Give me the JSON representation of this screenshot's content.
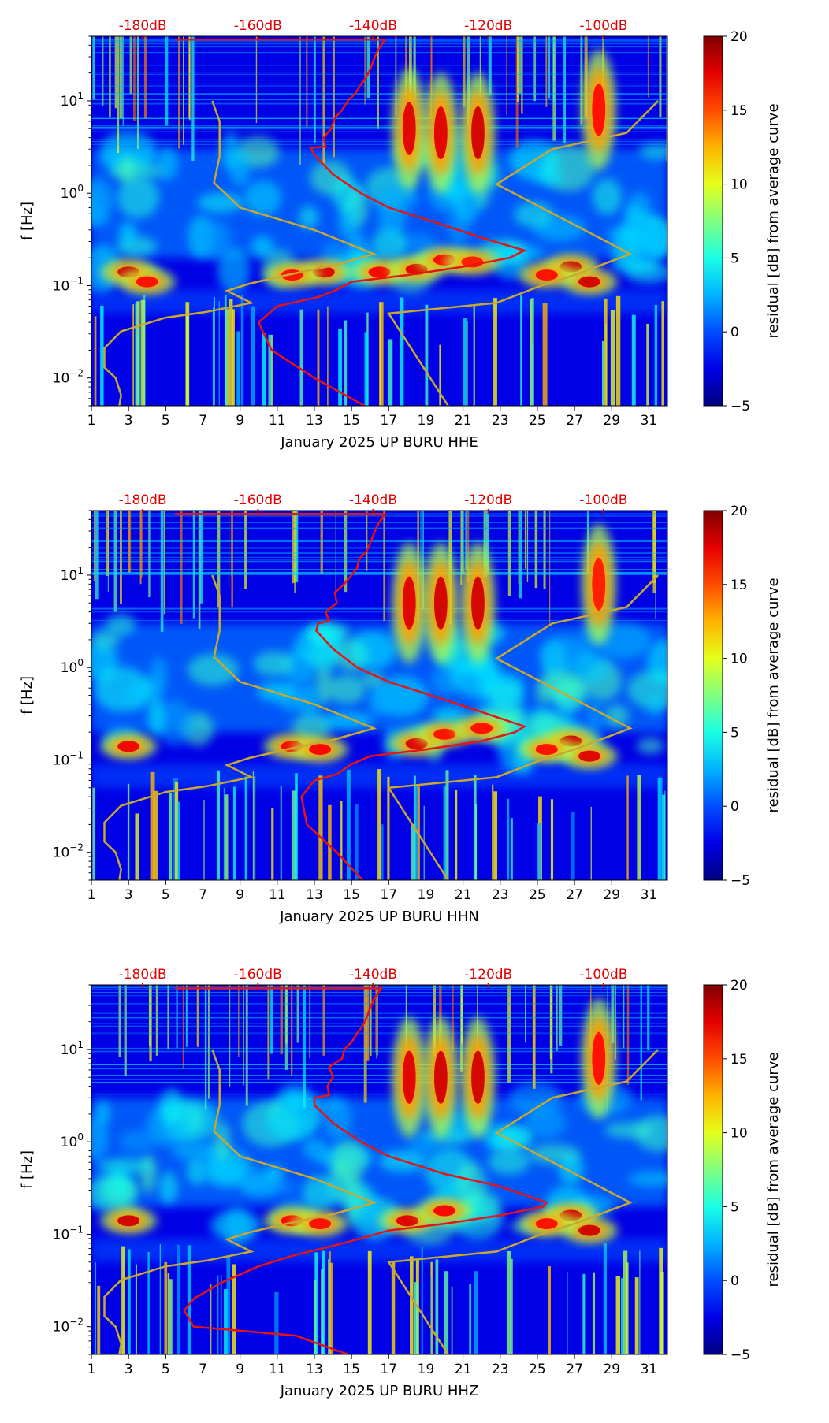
{
  "colors": {
    "db_label": "#e00000",
    "noise_model": "#c8a832",
    "psd_curve": "#e61414",
    "axis": "#000000"
  },
  "chart_data": [
    {
      "type": "heatmap",
      "component": "HHE",
      "xlabel": "January 2025 UP BURU  HHE",
      "ylabel": "f [Hz]",
      "x_ticks": [
        "1",
        "3",
        "5",
        "7",
        "9",
        "11",
        "13",
        "15",
        "17",
        "19",
        "21",
        "23",
        "25",
        "27",
        "29",
        "31"
      ],
      "x_range": [
        1,
        32
      ],
      "y_range": [
        0.005,
        50
      ],
      "y_scale": "log",
      "y_ticks": [
        {
          "value": 0.01,
          "base": "10",
          "exp": "−2"
        },
        {
          "value": 0.1,
          "base": "10",
          "exp": "−1"
        },
        {
          "value": 1,
          "base": "10",
          "exp": "0"
        },
        {
          "value": 10,
          "base": "10",
          "exp": "1"
        }
      ],
      "top_db_labels": [
        "-180dB",
        "-160dB",
        "-140dB",
        "-120dB",
        "-100dB"
      ],
      "colorbar": {
        "label": "residual [dB] from average curve",
        "range": [
          -5,
          20
        ],
        "ticks": [
          "20",
          "15",
          "10",
          "5",
          "0",
          "−5"
        ]
      },
      "noise_model_curve": [
        [
          2.5,
          0.005
        ],
        [
          2.6,
          0.0065
        ],
        [
          2.3,
          0.01
        ],
        [
          1.7,
          0.013
        ],
        [
          1.7,
          0.021
        ],
        [
          2.6,
          0.032
        ],
        [
          5.0,
          0.045
        ],
        [
          7.2,
          0.052
        ],
        [
          9.6,
          0.065
        ],
        [
          8.3,
          0.088
        ],
        [
          9.5,
          0.105
        ],
        [
          11.5,
          0.13
        ],
        [
          14.0,
          0.165
        ],
        [
          16.2,
          0.22
        ],
        [
          13.0,
          0.4
        ],
        [
          9.0,
          0.7
        ],
        [
          7.6,
          1.3
        ],
        [
          7.9,
          2.5
        ],
        [
          7.9,
          6.0
        ],
        [
          7.5,
          10.0
        ]
      ],
      "noise_model_curve_2": [
        [
          20.2,
          0.005
        ],
        [
          17.0,
          0.05
        ],
        [
          22.8,
          0.065
        ],
        [
          25.2,
          0.1
        ],
        [
          27.0,
          0.13
        ],
        [
          30.0,
          0.22
        ],
        [
          22.8,
          1.25
        ],
        [
          25.8,
          3.0
        ],
        [
          29.8,
          4.5
        ],
        [
          31.5,
          10.0
        ]
      ],
      "psd_curve": [
        [
          15.7,
          0.005
        ],
        [
          13.0,
          0.01
        ],
        [
          10.7,
          0.02
        ],
        [
          10.0,
          0.04
        ],
        [
          11.0,
          0.06
        ],
        [
          13.2,
          0.075
        ],
        [
          14.2,
          0.09
        ],
        [
          15.0,
          0.11
        ],
        [
          18.0,
          0.13
        ],
        [
          21.0,
          0.16
        ],
        [
          23.5,
          0.2
        ],
        [
          24.3,
          0.24
        ],
        [
          22.0,
          0.33
        ],
        [
          20.0,
          0.45
        ],
        [
          17.0,
          0.7
        ],
        [
          15.5,
          1.0
        ],
        [
          14.0,
          1.6
        ],
        [
          13.0,
          2.6
        ],
        [
          12.8,
          3.1
        ],
        [
          13.6,
          3.2
        ],
        [
          13.5,
          4.0
        ],
        [
          13.9,
          5.0
        ],
        [
          14.1,
          6.5
        ],
        [
          14.5,
          8.0
        ],
        [
          14.8,
          10.0
        ],
        [
          15.2,
          12.0
        ],
        [
          15.5,
          15.0
        ],
        [
          15.8,
          18.0
        ],
        [
          16.0,
          22.0
        ],
        [
          16.2,
          28.0
        ],
        [
          16.4,
          35.0
        ],
        [
          16.6,
          40.0
        ],
        [
          16.8,
          46.0
        ],
        [
          5.5,
          46.0
        ]
      ],
      "hotspots": [
        [
          3,
          0.14,
          1.0
        ],
        [
          4.0,
          0.11,
          0.6
        ],
        [
          13.5,
          0.14,
          0.9
        ],
        [
          11.8,
          0.13,
          0.6
        ],
        [
          16.5,
          0.14,
          0.7
        ],
        [
          18.5,
          0.15,
          0.9
        ],
        [
          20.0,
          0.19,
          0.7
        ],
        [
          21.5,
          0.18,
          0.5
        ],
        [
          26.8,
          0.16,
          1.0
        ],
        [
          27.8,
          0.11,
          1.0
        ],
        [
          25.5,
          0.13,
          0.6
        ],
        [
          18.1,
          5.0,
          0.9
        ],
        [
          19.8,
          4.5,
          0.9
        ],
        [
          21.8,
          4.5,
          1.0
        ],
        [
          28.3,
          8.0,
          0.6
        ]
      ]
    },
    {
      "type": "heatmap",
      "component": "HHN",
      "xlabel": "January 2025 UP BURU  HHN",
      "ylabel": "f [Hz]",
      "x_ticks": [
        "1",
        "3",
        "5",
        "7",
        "9",
        "11",
        "13",
        "15",
        "17",
        "19",
        "21",
        "23",
        "25",
        "27",
        "29",
        "31"
      ],
      "x_range": [
        1,
        32
      ],
      "y_range": [
        0.005,
        50
      ],
      "y_scale": "log",
      "y_ticks": [
        {
          "value": 0.01,
          "base": "10",
          "exp": "−2"
        },
        {
          "value": 0.1,
          "base": "10",
          "exp": "−1"
        },
        {
          "value": 1,
          "base": "10",
          "exp": "0"
        },
        {
          "value": 10,
          "base": "10",
          "exp": "1"
        }
      ],
      "top_db_labels": [
        "-180dB",
        "-160dB",
        "-140dB",
        "-120dB",
        "-100dB"
      ],
      "colorbar": {
        "label": "residual [dB] from average curve",
        "range": [
          -5,
          20
        ],
        "ticks": [
          "20",
          "15",
          "10",
          "5",
          "0",
          "−5"
        ]
      },
      "noise_model_curve": [
        [
          2.5,
          0.005
        ],
        [
          2.6,
          0.0065
        ],
        [
          2.3,
          0.01
        ],
        [
          1.7,
          0.013
        ],
        [
          1.7,
          0.021
        ],
        [
          2.6,
          0.032
        ],
        [
          5.0,
          0.045
        ],
        [
          7.2,
          0.052
        ],
        [
          9.6,
          0.065
        ],
        [
          8.3,
          0.088
        ],
        [
          9.5,
          0.105
        ],
        [
          11.5,
          0.13
        ],
        [
          14.0,
          0.165
        ],
        [
          16.2,
          0.22
        ],
        [
          13.0,
          0.4
        ],
        [
          9.0,
          0.7
        ],
        [
          7.6,
          1.3
        ],
        [
          7.9,
          2.5
        ],
        [
          7.9,
          6.0
        ],
        [
          7.5,
          10.0
        ]
      ],
      "noise_model_curve_2": [
        [
          20.2,
          0.005
        ],
        [
          17.0,
          0.05
        ],
        [
          22.8,
          0.065
        ],
        [
          25.2,
          0.1
        ],
        [
          27.0,
          0.13
        ],
        [
          30.0,
          0.22
        ],
        [
          22.8,
          1.25
        ],
        [
          25.8,
          3.0
        ],
        [
          29.8,
          4.5
        ],
        [
          31.5,
          10.0
        ]
      ],
      "psd_curve": [
        [
          15.6,
          0.005
        ],
        [
          14.2,
          0.01
        ],
        [
          12.6,
          0.02
        ],
        [
          12.3,
          0.04
        ],
        [
          13.0,
          0.06
        ],
        [
          14.2,
          0.07
        ],
        [
          15.0,
          0.09
        ],
        [
          16.0,
          0.11
        ],
        [
          19.0,
          0.13
        ],
        [
          22.0,
          0.16
        ],
        [
          23.8,
          0.2
        ],
        [
          24.3,
          0.23
        ],
        [
          22.0,
          0.33
        ],
        [
          20.0,
          0.45
        ],
        [
          17.0,
          0.7
        ],
        [
          15.3,
          1.0
        ],
        [
          14.0,
          1.6
        ],
        [
          13.1,
          2.5
        ],
        [
          13.2,
          3.0
        ],
        [
          13.8,
          3.2
        ],
        [
          13.6,
          4.0
        ],
        [
          14.2,
          5.0
        ],
        [
          14.1,
          6.5
        ],
        [
          14.6,
          8.0
        ],
        [
          15.0,
          10.0
        ],
        [
          15.3,
          12.0
        ],
        [
          15.4,
          15.0
        ],
        [
          15.8,
          18.0
        ],
        [
          16.0,
          22.0
        ],
        [
          16.2,
          28.0
        ],
        [
          16.4,
          35.0
        ],
        [
          16.6,
          40.0
        ],
        [
          16.8,
          46.0
        ],
        [
          5.5,
          46.0
        ]
      ],
      "hotspots": [
        [
          3,
          0.14,
          0.8
        ],
        [
          11.8,
          0.14,
          0.7
        ],
        [
          13.3,
          0.13,
          0.7
        ],
        [
          18.5,
          0.15,
          0.9
        ],
        [
          20.0,
          0.19,
          0.6
        ],
        [
          22.0,
          0.22,
          0.6
        ],
        [
          26.8,
          0.16,
          1.0
        ],
        [
          27.8,
          0.11,
          0.9
        ],
        [
          25.5,
          0.13,
          0.6
        ],
        [
          18.1,
          5.0,
          0.9
        ],
        [
          19.8,
          5.0,
          1.0
        ],
        [
          21.8,
          5.0,
          1.0
        ],
        [
          28.3,
          8.0,
          0.5
        ]
      ]
    },
    {
      "type": "heatmap",
      "component": "HHZ",
      "xlabel": "January 2025 UP BURU  HHZ",
      "ylabel": "f [Hz]",
      "x_ticks": [
        "1",
        "3",
        "5",
        "7",
        "9",
        "11",
        "13",
        "15",
        "17",
        "19",
        "21",
        "23",
        "25",
        "27",
        "29",
        "31"
      ],
      "x_range": [
        1,
        32
      ],
      "y_range": [
        0.005,
        50
      ],
      "y_scale": "log",
      "y_ticks": [
        {
          "value": 0.01,
          "base": "10",
          "exp": "−2"
        },
        {
          "value": 0.1,
          "base": "10",
          "exp": "−1"
        },
        {
          "value": 1,
          "base": "10",
          "exp": "0"
        },
        {
          "value": 10,
          "base": "10",
          "exp": "1"
        }
      ],
      "top_db_labels": [
        "-180dB",
        "-160dB",
        "-140dB",
        "-120dB",
        "-100dB"
      ],
      "colorbar": {
        "label": "residual [dB] from average curve",
        "range": [
          -5,
          20
        ],
        "ticks": [
          "20",
          "15",
          "10",
          "5",
          "0",
          "−5"
        ]
      },
      "noise_model_curve": [
        [
          2.5,
          0.005
        ],
        [
          2.6,
          0.0065
        ],
        [
          2.3,
          0.01
        ],
        [
          1.7,
          0.013
        ],
        [
          1.7,
          0.021
        ],
        [
          2.6,
          0.032
        ],
        [
          5.0,
          0.045
        ],
        [
          7.2,
          0.052
        ],
        [
          9.6,
          0.065
        ],
        [
          8.3,
          0.088
        ],
        [
          9.5,
          0.105
        ],
        [
          11.5,
          0.13
        ],
        [
          14.0,
          0.165
        ],
        [
          16.2,
          0.22
        ],
        [
          13.0,
          0.4
        ],
        [
          9.0,
          0.7
        ],
        [
          7.6,
          1.3
        ],
        [
          7.9,
          2.5
        ],
        [
          7.9,
          6.0
        ],
        [
          7.5,
          10.0
        ]
      ],
      "noise_model_curve_2": [
        [
          20.2,
          0.005
        ],
        [
          17.0,
          0.05
        ],
        [
          22.8,
          0.065
        ],
        [
          25.2,
          0.1
        ],
        [
          27.0,
          0.13
        ],
        [
          30.0,
          0.22
        ],
        [
          22.8,
          1.25
        ],
        [
          25.8,
          3.0
        ],
        [
          29.8,
          4.5
        ],
        [
          31.5,
          10.0
        ]
      ],
      "psd_curve": [
        [
          14.8,
          0.005
        ],
        [
          12.0,
          0.008
        ],
        [
          6.5,
          0.01
        ],
        [
          6.0,
          0.015
        ],
        [
          6.5,
          0.02
        ],
        [
          8.0,
          0.03
        ],
        [
          10.0,
          0.045
        ],
        [
          12.0,
          0.06
        ],
        [
          14.0,
          0.075
        ],
        [
          15.5,
          0.09
        ],
        [
          17.0,
          0.11
        ],
        [
          20.0,
          0.13
        ],
        [
          23.0,
          0.16
        ],
        [
          25.3,
          0.2
        ],
        [
          25.5,
          0.22
        ],
        [
          23.0,
          0.33
        ],
        [
          20.0,
          0.45
        ],
        [
          17.0,
          0.7
        ],
        [
          15.5,
          1.0
        ],
        [
          14.0,
          1.6
        ],
        [
          13.0,
          2.5
        ],
        [
          13.0,
          3.0
        ],
        [
          13.8,
          3.2
        ],
        [
          13.7,
          4.0
        ],
        [
          14.0,
          5.0
        ],
        [
          13.8,
          6.5
        ],
        [
          14.5,
          8.0
        ],
        [
          14.6,
          10.0
        ],
        [
          15.0,
          12.0
        ],
        [
          15.3,
          15.0
        ],
        [
          15.6,
          18.0
        ],
        [
          15.8,
          22.0
        ],
        [
          16.0,
          28.0
        ],
        [
          16.2,
          35.0
        ],
        [
          16.4,
          40.0
        ],
        [
          16.6,
          46.0
        ],
        [
          5.5,
          46.0
        ]
      ],
      "hotspots": [
        [
          3,
          0.14,
          1.0
        ],
        [
          11.8,
          0.14,
          0.7
        ],
        [
          13.3,
          0.13,
          0.6
        ],
        [
          18.0,
          0.14,
          0.9
        ],
        [
          20.0,
          0.18,
          0.7
        ],
        [
          26.8,
          0.16,
          1.0
        ],
        [
          27.8,
          0.11,
          1.0
        ],
        [
          25.5,
          0.13,
          0.6
        ],
        [
          18.1,
          5.0,
          0.9
        ],
        [
          19.8,
          5.0,
          1.0
        ],
        [
          21.8,
          5.0,
          1.0
        ],
        [
          28.3,
          8.0,
          0.6
        ]
      ]
    }
  ]
}
